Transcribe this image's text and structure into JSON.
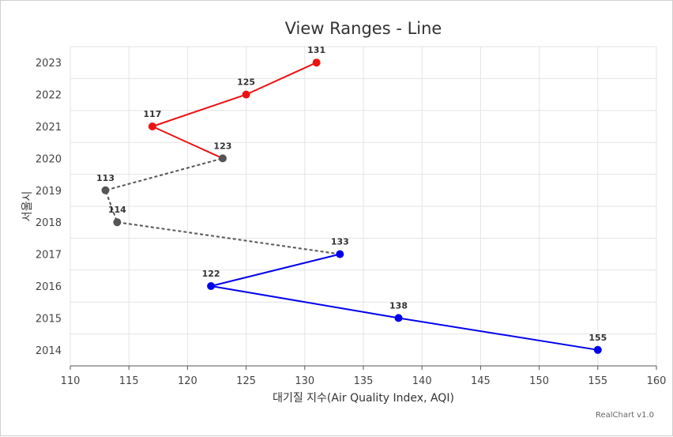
{
  "chart_data": {
    "type": "line",
    "orientation": "horizontal",
    "title": "View Ranges - Line",
    "xlabel": "대기질 지수(Air Quality Index, AQI)",
    "ylabel": "서울시",
    "xlim": [
      110,
      160
    ],
    "xticks": [
      110,
      115,
      120,
      125,
      130,
      135,
      140,
      145,
      150,
      155,
      160
    ],
    "categories": [
      "2014",
      "2015",
      "2016",
      "2017",
      "2018",
      "2019",
      "2020",
      "2021",
      "2022",
      "2023"
    ],
    "values": [
      155,
      138,
      122,
      133,
      114,
      113,
      123,
      117,
      125,
      131
    ],
    "view_ranges": [
      {
        "from": "2014",
        "to": "2017",
        "color": "#0000ee",
        "style": "solid"
      },
      {
        "from": "2017",
        "to": "2020",
        "color": "#555555",
        "style": "dashed"
      },
      {
        "from": "2020",
        "to": "2023",
        "color": "#ee1111",
        "style": "solid"
      }
    ],
    "grid": true,
    "credit": "RealChart v1.0"
  }
}
